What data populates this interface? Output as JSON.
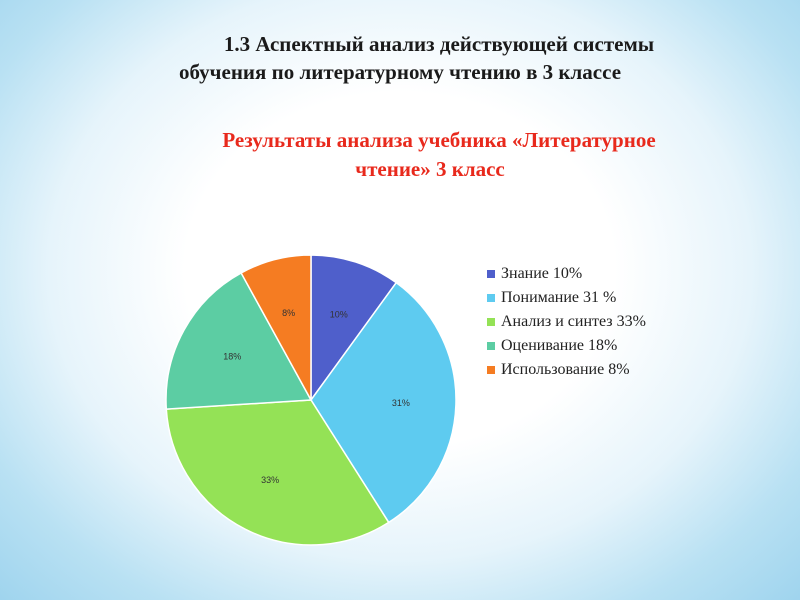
{
  "title": {
    "line1": "1.3 Аспектный анализ действующей системы",
    "line2": "обучения по литературному чтению  в 3 классе"
  },
  "subtitle": {
    "line1": "Результаты анализа учебника «Литературное",
    "line2": "чтение» 3 класс"
  },
  "chart_data": {
    "type": "pie",
    "title": "",
    "categories": [
      "Знание 10%",
      "Понимание 31 %",
      "Анализ и синтез 33%",
      "Оценивание 18%",
      "Использование 8%"
    ],
    "values": [
      10,
      31,
      33,
      18,
      8
    ],
    "data_labels": [
      "10%",
      "31%",
      "33%",
      "18%",
      "8%"
    ],
    "colors": [
      "#4f5fcb",
      "#5ecbf0",
      "#94e256",
      "#5ccda3",
      "#f57c22"
    ],
    "legend": {
      "placement": "right"
    },
    "start": "12 o'clock",
    "direction": "clockwise"
  }
}
